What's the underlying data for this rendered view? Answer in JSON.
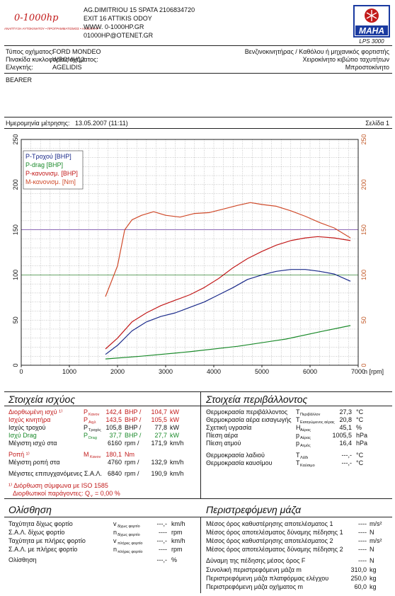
{
  "header": {
    "lines": [
      "AG.DIMITRIOU 15 SPATA 2106834720",
      "EXIT 16 ATTIKIS ODOY",
      "WWW. 0-1000HP.GR",
      "01000HP@OTENET.GR"
    ],
    "logo_left_name": "0-1000hp",
    "logo_left_sub": "ΑΝΑΠΤΥΞΗ ΑΥΤΟΚΙΝΗΤΟΥ • ΠΡΟΓΡΑΜΜΑΤΙΣΜΟΣ • ΑΞΕΣΟΥΑΡ",
    "logo_right_brand": "MAHA",
    "logo_right_model": "LPS 3000",
    "logo_right_icon": "snowflake-emblem-icon"
  },
  "vehicle": {
    "type_label": "Τύπος οχήματος:",
    "type_value": "FORD MONDEO",
    "plate_label": "Πινακίδα κυκλοφορίας οχήματος:",
    "plate_value": "WBOMH12",
    "inspector_label": "Ελεγκτής:",
    "inspector_value": "AGELIDIS",
    "engine": "Βενζινοκινητήρας / Καθόλου ή μηχανικός φορτιστής",
    "gearbox": "Χειροκίνητο κιβώτιο ταχυτήτων",
    "drive": "Μπροστοκίνητο",
    "note": "BEARER"
  },
  "measurement": {
    "date_label": "Ημερομηνία μέτρησης:",
    "date_value": "13.05.2007 (11:11)",
    "page": "Σελίδα 1"
  },
  "chart_data": {
    "type": "line",
    "xlabel": "n [rpm]",
    "xlim": [
      0,
      7000
    ],
    "ylim_left": [
      0,
      250
    ],
    "ylim_right": [
      0,
      250
    ],
    "x_ticks": [
      "0",
      "1000",
      "2000",
      "3000",
      "4000",
      "5000",
      "6000",
      "7000"
    ],
    "y_ticks_left": [
      "0",
      "50",
      "100",
      "150",
      "200",
      "250"
    ],
    "y_ticks_right": [
      "0",
      "50",
      "100",
      "150",
      "200",
      "250"
    ],
    "grid": true,
    "legend_position": "top-left",
    "colors": {
      "wheel": "#1a2a8a",
      "drag": "#1a8a2a",
      "power_norm": "#c21a1a",
      "torque_norm": "#d04a2a"
    },
    "series": [
      {
        "name": "P-Τροχού [BHP]",
        "key": "wheel",
        "x": [
          1750,
          2000,
          2300,
          2600,
          2900,
          3200,
          3500,
          3800,
          4100,
          4400,
          4700,
          5000,
          5300,
          5600,
          5900,
          6200,
          6500,
          6840
        ],
        "y": [
          12,
          22,
          38,
          48,
          54,
          58,
          64,
          70,
          78,
          86,
          95,
          100,
          104,
          106,
          106,
          104,
          101,
          93
        ]
      },
      {
        "name": "P-drag [BHP]",
        "key": "drag",
        "x": [
          1750,
          2500,
          3500,
          4500,
          5500,
          6200,
          6840
        ],
        "y": [
          7,
          10,
          15,
          21,
          29,
          37,
          44
        ]
      },
      {
        "name": "P-κανονισμ. [BHP]",
        "key": "power_norm",
        "x": [
          1750,
          2000,
          2300,
          2600,
          2900,
          3200,
          3500,
          3800,
          4100,
          4400,
          4700,
          5000,
          5300,
          5600,
          5900,
          6160,
          6500,
          6840
        ],
        "y": [
          18,
          30,
          48,
          58,
          66,
          72,
          78,
          86,
          96,
          108,
          118,
          126,
          133,
          138,
          141,
          142.4,
          141,
          138
        ]
      },
      {
        "name": "M-κανονισμ. [Nm]",
        "key": "torque_norm",
        "x": [
          1750,
          2000,
          2150,
          2300,
          2500,
          2750,
          3000,
          3300,
          3600,
          3900,
          4200,
          4500,
          4760,
          5000,
          5300,
          5600,
          5900,
          6200,
          6500,
          6840
        ],
        "y": [
          76,
          110,
          150,
          161,
          166,
          170,
          166,
          164,
          168,
          169,
          173,
          177,
          180.1,
          178,
          176,
          171,
          165,
          158,
          152,
          141
        ]
      }
    ]
  },
  "power": {
    "title": "Στοιχεία ισχύος",
    "rows": [
      {
        "label": "Διορθωμένη ισχύ ¹⁾",
        "sym": "P",
        "sub": "Κανον",
        "v1": "142,4",
        "u1": "BHP /",
        "v2": "104,7",
        "u2": "kW",
        "color": "red"
      },
      {
        "label": "Ισχύς κινητήρα",
        "sym": "P",
        "sub": "Αιχλ",
        "v1": "143,5",
        "u1": "BHP /",
        "v2": "105,5",
        "u2": "kW",
        "color": "red"
      },
      {
        "label": "Ισχύς τροχού",
        "sym": "P",
        "sub": "Τροχός",
        "v1": "105,8",
        "u1": "BHP /",
        "v2": "77,8",
        "u2": "kW",
        "color": "black"
      },
      {
        "label": "Ισχύ Drag",
        "sym": "P",
        "sub": "Drag",
        "v1": "37,7",
        "u1": "BHP /",
        "v2": "27,7",
        "u2": "kW",
        "color": "green"
      },
      {
        "label": "Μέγιστη ισχύ στα",
        "sym": "",
        "sub": "",
        "v1": "6160",
        "u1": "rpm /",
        "v2": "171,9",
        "u2": "km/h",
        "color": "black"
      }
    ],
    "torque_label": "Ροπή ¹⁾",
    "torque_sym": "M",
    "torque_sub": "Κανον",
    "torque_value": "180,1",
    "torque_unit": "Nm",
    "max_torque_label": "Μέγιστη ροπή στα",
    "max_torque_rpm": "4760",
    "max_torque_rpm_unit": "rpm /",
    "max_torque_speed": "132,9",
    "max_torque_speed_unit": "km/h",
    "max_rpm_label": "Μέγιστες επιτυγχανόμενες Σ.Α.Λ.",
    "max_rpm": "6840",
    "max_rpm_unit": "rpm /",
    "max_rpm_speed": "190,9",
    "max_rpm_speed_unit": "km/h",
    "footnote1": "¹⁾ Διόρθωση σύμφωνα με  ISO 1585",
    "footnote2": "Διορθωτικοί παράγοντες: Q",
    "footnote2_sub": "v",
    "footnote2_value": "=   0,00 %"
  },
  "environment": {
    "title": "Στοιχεία περιβάλλοντος",
    "rows": [
      {
        "label": "Θερμοκρασία περιβάλλοντος",
        "sym": "T",
        "sub": "Περιβάλλον",
        "value": "27,3",
        "unit": "°C"
      },
      {
        "label": "Θερμοκρασία αέρα εισαγωγής",
        "sym": "T",
        "sub": "Εισαγώμενος αέρας",
        "value": "20,8",
        "unit": "°C"
      },
      {
        "label": "Σχετική υγρασία",
        "sym": "H",
        "sub": "Αέρας",
        "value": "45,1",
        "unit": "%"
      },
      {
        "label": "Πίεση αέρα",
        "sym": "p",
        "sub": "Αέρας",
        "value": "1005,5",
        "unit": "hPa"
      },
      {
        "label": "Πίεση ατμού",
        "sym": "p",
        "sub": "Ατμός",
        "value": "16,4",
        "unit": "hPa"
      },
      {
        "label": "Θερμοκρασία λαδιού",
        "sym": "T",
        "sub": "Λάδι",
        "value": "---,-",
        "unit": "°C"
      },
      {
        "label": "Θερμοκρασία καυσίμου",
        "sym": "T",
        "sub": "Καύσιμο",
        "value": "---,-",
        "unit": "°C"
      }
    ]
  },
  "slip": {
    "title": "Ολίσθηση",
    "rows": [
      {
        "label": "Ταχύτητα δίχως φορτίο",
        "sym": "v",
        "sub": "δίχως φορτίο",
        "value": "---,-",
        "unit": "km/h"
      },
      {
        "label": "Σ.Α.Λ. δίχως φορτίο",
        "sym": "n",
        "sub": "δίχως φορτίο",
        "value": "----",
        "unit": "rpm"
      },
      {
        "label": "Ταχύτητα με πλήρες φορτίο",
        "sym": "v",
        "sub": "πλήρες φορτίο",
        "value": "---,-",
        "unit": "km/h"
      },
      {
        "label": "Σ.Α.Λ. με πλήρες φορτίο",
        "sym": "n",
        "sub": "πλήρες φορτίο",
        "value": "----",
        "unit": "rpm"
      },
      {
        "label": "Ολίσθηση",
        "sym": "",
        "sub": "",
        "value": "---,-",
        "unit": "%"
      }
    ]
  },
  "mass": {
    "title": "Περιστρεφόμενη μάζα",
    "rows": [
      {
        "label": "Μέσος όρος καθυστέρησης αποτελέσματος 1",
        "value": "----",
        "unit": "m/s²"
      },
      {
        "label": "Μέσος όρος αποτελέσματος δύναμης πέδησης 1",
        "value": "----",
        "unit": "N"
      },
      {
        "label": "Μέσος όρος καθυστέρησης αποτελέσματος 2",
        "value": "----",
        "unit": "m/s²"
      },
      {
        "label": "Μέσος όρος αποτελέσματος δύναμης πέδησης 2",
        "value": "----",
        "unit": "N"
      },
      {
        "label": "Δύναμη της πέδησης μέσος όρος F",
        "value": "----",
        "unit": "N"
      },
      {
        "label": "Συνολική περιστρεφόμενη μάζα  m",
        "value": "310,0",
        "unit": "kg"
      },
      {
        "label": "Περιστρεφόμενη μάζα πλατφόρμας ελέγχου",
        "value": "250,0",
        "unit": "kg"
      },
      {
        "label": "Περιστρεφόμενη μάζα οχήματος  m",
        "value": "60,0",
        "unit": "kg"
      }
    ]
  }
}
